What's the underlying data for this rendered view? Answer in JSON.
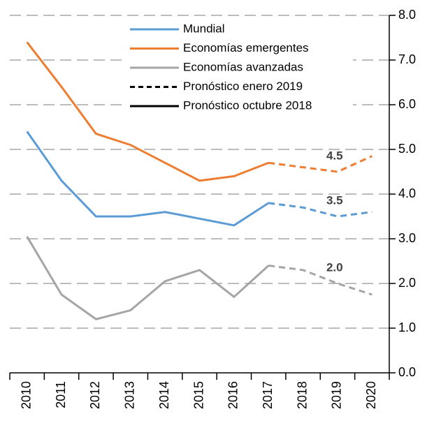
{
  "chart_data": {
    "type": "line",
    "categories": [
      "2010",
      "2011",
      "2012",
      "2013",
      "2014",
      "2015",
      "2016",
      "2017",
      "2018",
      "2019",
      "2020"
    ],
    "ylim": [
      0,
      8
    ],
    "yticks": [
      {
        "value": 0,
        "label": "0.0"
      },
      {
        "value": 1,
        "label": "1.0"
      },
      {
        "value": 2,
        "label": "2.0"
      },
      {
        "value": 3,
        "label": "3.0"
      },
      {
        "value": 4,
        "label": "4.0"
      },
      {
        "value": 5,
        "label": "5.0"
      },
      {
        "value": 6,
        "label": "6.0"
      },
      {
        "value": 7,
        "label": "7.0"
      },
      {
        "value": 8,
        "label": "8.0"
      }
    ],
    "grid": true,
    "series": [
      {
        "name": "Mundial",
        "color": "#5b9bd5",
        "values": [
          5.4,
          4.3,
          3.5,
          3.5,
          3.6,
          3.45,
          3.3,
          3.8,
          null,
          null,
          null
        ],
        "forecast": [
          null,
          null,
          null,
          null,
          null,
          null,
          null,
          3.8,
          3.7,
          3.5,
          3.6
        ],
        "forecast_labels": [
          null,
          null,
          null,
          null,
          null,
          null,
          null,
          null,
          null,
          "3.5",
          null
        ]
      },
      {
        "name": "Economías emergentes",
        "color": "#ed7d31",
        "values": [
          7.4,
          6.4,
          5.35,
          5.1,
          4.7,
          4.3,
          4.4,
          4.7,
          null,
          null,
          null
        ],
        "forecast": [
          null,
          null,
          null,
          null,
          null,
          null,
          null,
          4.7,
          4.6,
          4.5,
          4.85
        ],
        "forecast_labels": [
          null,
          null,
          null,
          null,
          null,
          null,
          null,
          null,
          null,
          "4.5",
          null
        ]
      },
      {
        "name": "Economías avanzadas",
        "color": "#a5a5a5",
        "values": [
          3.05,
          1.75,
          1.2,
          1.4,
          2.05,
          2.3,
          1.7,
          2.4,
          null,
          null,
          null
        ],
        "forecast": [
          null,
          null,
          null,
          null,
          null,
          null,
          null,
          2.4,
          2.3,
          2.0,
          1.75
        ],
        "forecast_labels": [
          null,
          null,
          null,
          null,
          null,
          null,
          null,
          null,
          null,
          "2.0",
          null
        ]
      }
    ],
    "line_styles": [
      {
        "name": "Pronóstico enero 2019",
        "dashed": true,
        "color": "#000000"
      },
      {
        "name": "Pronóstico octubre 2018",
        "dashed": false,
        "color": "#000000"
      }
    ]
  }
}
